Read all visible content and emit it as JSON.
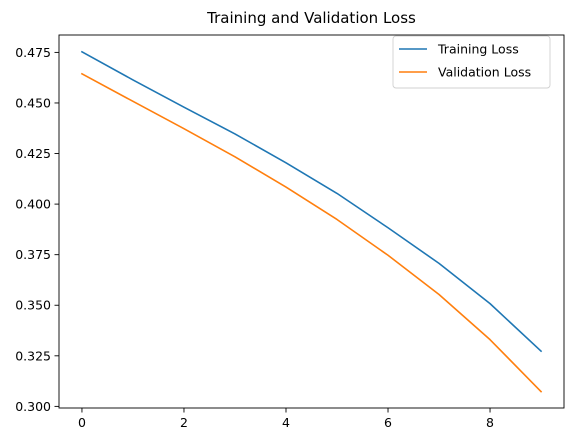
{
  "chart_data": {
    "type": "line",
    "title": "Training and Validation Loss",
    "xlabel": "",
    "ylabel": "",
    "x": [
      0,
      1,
      2,
      3,
      4,
      5,
      6,
      7,
      8,
      9
    ],
    "xlim": [
      -0.45,
      9.45
    ],
    "ylim": [
      0.2992,
      0.4836
    ],
    "xticks": [
      0,
      2,
      4,
      6,
      8
    ],
    "yticks": [
      0.3,
      0.325,
      0.35,
      0.375,
      0.4,
      0.425,
      0.45,
      0.475
    ],
    "xtick_labels": [
      "0",
      "2",
      "4",
      "6",
      "8"
    ],
    "ytick_labels": [
      "0.300",
      "0.325",
      "0.350",
      "0.375",
      "0.400",
      "0.425",
      "0.450",
      "0.475"
    ],
    "grid": false,
    "legend_position": "top-right",
    "series": [
      {
        "name": "Training Loss",
        "color": "#1f77b4",
        "values": [
          0.4753,
          0.4614,
          0.4479,
          0.4347,
          0.4204,
          0.4053,
          0.3883,
          0.3707,
          0.3508,
          0.3273
        ]
      },
      {
        "name": "Validation Loss",
        "color": "#ff7f0e",
        "values": [
          0.4644,
          0.4508,
          0.4373,
          0.4234,
          0.4084,
          0.3924,
          0.3747,
          0.3553,
          0.333,
          0.3073
        ]
      }
    ]
  }
}
